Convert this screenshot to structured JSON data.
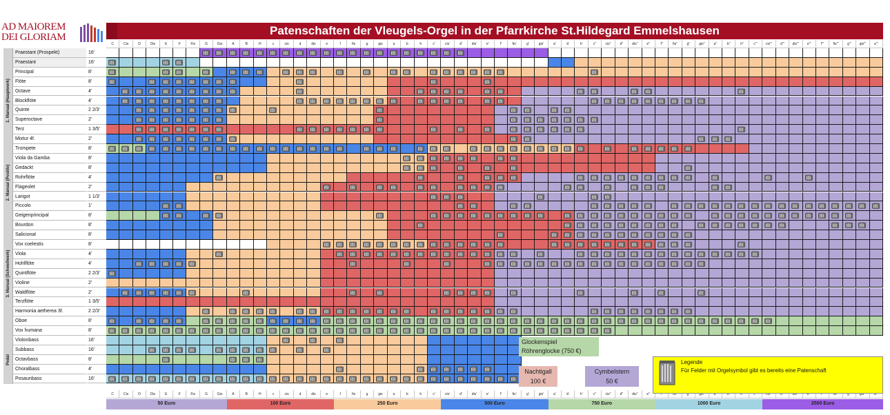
{
  "header": {
    "logo_line1": "AD MAIOREM",
    "logo_line2": "DEI GLORIAM",
    "title": "Patenschaften der Vleugels-Orgel in der Pfarrkirche St.Hildegard Emmelshausen"
  },
  "notes": [
    "C",
    "Cis",
    "D",
    "Dis",
    "E",
    "F",
    "Fis",
    "G",
    "Gis",
    "A",
    "B",
    "H",
    "c",
    "cis",
    "d",
    "dis",
    "e",
    "f",
    "fis",
    "g",
    "gis",
    "a",
    "b",
    "h",
    "c'",
    "cis'",
    "d'",
    "dis'",
    "e'",
    "f'",
    "fis'",
    "g'",
    "gis'",
    "a'",
    "b'",
    "h'",
    "c''",
    "cis''",
    "d''",
    "dis''",
    "e''",
    "f''",
    "fis''",
    "g''",
    "gis''",
    "a''",
    "b''",
    "h''",
    "c'''",
    "cis'''",
    "d'''",
    "dis'''",
    "e'''",
    "f'''",
    "fis'''",
    "g'''",
    "gis'''",
    "a'''"
  ],
  "sections": [
    {
      "label": "1. Manual (Hauptwerk)",
      "rows": [
        {
          "name": "Praestant  (Prospekt)",
          "feet": "16'"
        },
        {
          "name": "Praestant",
          "feet": "16'"
        },
        {
          "name": "Principal",
          "feet": "8'"
        },
        {
          "name": "Flöte",
          "feet": "8'"
        },
        {
          "name": "Octave",
          "feet": "4'"
        },
        {
          "name": "Blockflöte",
          "feet": "4'"
        },
        {
          "name": "Quinte",
          "feet": "2 2/3'"
        },
        {
          "name": "Superoctave",
          "feet": "2'"
        },
        {
          "name": "Terz",
          "feet": "1 3/5'"
        },
        {
          "name": "Mixtur  4f.",
          "feet": "2'"
        },
        {
          "name": "Trompete",
          "feet": "8'"
        }
      ]
    },
    {
      "label": "2. Manual (Positiv)",
      "rows": [
        {
          "name": "Viola  da  Gamba",
          "feet": "8'"
        },
        {
          "name": "Gedackt",
          "feet": "8'"
        },
        {
          "name": "Rohrflöte",
          "feet": "4'"
        },
        {
          "name": "Flageolet",
          "feet": "2'"
        },
        {
          "name": "Larigot",
          "feet": "1 1/3'"
        },
        {
          "name": "Piccolo",
          "feet": "1'"
        }
      ]
    },
    {
      "label": "3. Manual (Schwellwerk)",
      "rows": [
        {
          "name": "Geigenprincipal",
          "feet": "8'"
        },
        {
          "name": "Bourdon",
          "feet": "8'"
        },
        {
          "name": "Salicional",
          "feet": "8'"
        },
        {
          "name": "Vox  coelestis",
          "feet": "8'"
        },
        {
          "name": "Viola",
          "feet": "4'"
        },
        {
          "name": "Hohlflöte",
          "feet": "4'"
        },
        {
          "name": "Quintflöte",
          "feet": "2 2/3'"
        },
        {
          "name": "Violine",
          "feet": "2'"
        },
        {
          "name": "Waldflöte",
          "feet": "2'"
        },
        {
          "name": "Terzflöte",
          "feet": "1 3/5'"
        },
        {
          "name": "Harmonia  aetherea 3f.",
          "feet": "2 2/3'"
        },
        {
          "name": "Oboe",
          "feet": "8'"
        },
        {
          "name": "Vox  humana",
          "feet": "8'"
        }
      ]
    },
    {
      "label": "Pedal",
      "rows": [
        {
          "name": "Violonbass",
          "feet": "16'"
        },
        {
          "name": "Subbass",
          "feet": "16'"
        },
        {
          "name": "Octavbass",
          "feet": "8'"
        },
        {
          "name": "Choralbass",
          "feet": "4'"
        },
        {
          "name": "Posaunbass",
          "feet": "16'"
        }
      ]
    }
  ],
  "price_legend": [
    {
      "label": "50 Euro",
      "color": "#b4a7d6"
    },
    {
      "label": "100 Euro",
      "color": "#e06666"
    },
    {
      "label": "250 Euro",
      "color": "#f9cb9c"
    },
    {
      "label": "500 Euro",
      "color": "#4a86e8"
    },
    {
      "label": "750 Euro",
      "color": "#b6d7a8"
    },
    {
      "label": "1000 Euro",
      "color": "#a2d3e3"
    },
    {
      "label": "2500 Euro",
      "color": "#9b5de5"
    }
  ],
  "extras": {
    "glocken_line1": "Glockenspiel",
    "glocken_line2": "Röhrenglocke (750 €)",
    "nachtigall_name": "Nachtigall",
    "nachtigall_price": "100 €",
    "cymbelstern_name": "Cymbelstern",
    "cymbelstern_price": "50 €"
  },
  "legend": {
    "title": "Legende",
    "text": "Für Felder mit Orgelsymbol gibt es bereits eine Patenschaft"
  }
}
